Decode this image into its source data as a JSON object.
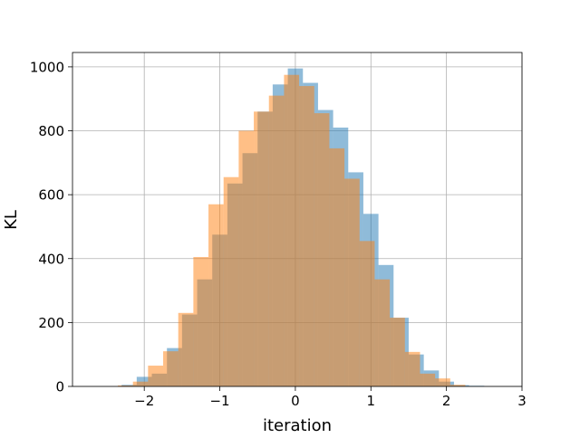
{
  "chart_data": {
    "type": "bar",
    "title": "",
    "xlabel": "iteration",
    "ylabel": "KL",
    "xlim": [
      -2.95,
      3.0
    ],
    "ylim": [
      0,
      1045
    ],
    "grid": true,
    "xticks": [
      -2,
      -1,
      0,
      1,
      2,
      3
    ],
    "xtick_labels": [
      "−2",
      "−1",
      "0",
      "1",
      "2",
      "3"
    ],
    "yticks": [
      0,
      200,
      400,
      600,
      800,
      1000
    ],
    "ytick_labels": [
      "0",
      "200",
      "400",
      "600",
      "800",
      "1000"
    ],
    "series": [
      {
        "color": "#1f77b4",
        "opacity": 0.5,
        "bins": [
          {
            "x0": -2.3,
            "x1": -2.1,
            "value": 5
          },
          {
            "x0": -2.1,
            "x1": -1.9,
            "value": 30
          },
          {
            "x0": -1.9,
            "x1": -1.7,
            "value": 40
          },
          {
            "x0": -1.7,
            "x1": -1.5,
            "value": 120
          },
          {
            "x0": -1.5,
            "x1": -1.3,
            "value": 225
          },
          {
            "x0": -1.3,
            "x1": -1.1,
            "value": 335
          },
          {
            "x0": -1.1,
            "x1": -0.9,
            "value": 475
          },
          {
            "x0": -0.9,
            "x1": -0.7,
            "value": 635
          },
          {
            "x0": -0.7,
            "x1": -0.5,
            "value": 730
          },
          {
            "x0": -0.5,
            "x1": -0.3,
            "value": 860
          },
          {
            "x0": -0.3,
            "x1": -0.1,
            "value": 945
          },
          {
            "x0": -0.1,
            "x1": 0.1,
            "value": 995
          },
          {
            "x0": 0.1,
            "x1": 0.3,
            "value": 950
          },
          {
            "x0": 0.3,
            "x1": 0.5,
            "value": 865
          },
          {
            "x0": 0.5,
            "x1": 0.7,
            "value": 810
          },
          {
            "x0": 0.7,
            "x1": 0.9,
            "value": 670
          },
          {
            "x0": 0.9,
            "x1": 1.1,
            "value": 540
          },
          {
            "x0": 1.1,
            "x1": 1.3,
            "value": 380
          },
          {
            "x0": 1.3,
            "x1": 1.5,
            "value": 215
          },
          {
            "x0": 1.5,
            "x1": 1.7,
            "value": 100
          },
          {
            "x0": 1.7,
            "x1": 1.9,
            "value": 50
          },
          {
            "x0": 1.9,
            "x1": 2.1,
            "value": 15
          },
          {
            "x0": 2.1,
            "x1": 2.3,
            "value": 4
          },
          {
            "x0": 2.3,
            "x1": 2.5,
            "value": 2
          }
        ]
      },
      {
        "color": "#ff7f0e",
        "opacity": 0.5,
        "bins": [
          {
            "x0": -2.35,
            "x1": -2.15,
            "value": 3
          },
          {
            "x0": -2.15,
            "x1": -1.95,
            "value": 15
          },
          {
            "x0": -1.95,
            "x1": -1.75,
            "value": 65
          },
          {
            "x0": -1.75,
            "x1": -1.55,
            "value": 110
          },
          {
            "x0": -1.55,
            "x1": -1.35,
            "value": 230
          },
          {
            "x0": -1.35,
            "x1": -1.15,
            "value": 405
          },
          {
            "x0": -1.15,
            "x1": -0.95,
            "value": 570
          },
          {
            "x0": -0.95,
            "x1": -0.75,
            "value": 655
          },
          {
            "x0": -0.75,
            "x1": -0.55,
            "value": 800
          },
          {
            "x0": -0.55,
            "x1": -0.35,
            "value": 860
          },
          {
            "x0": -0.35,
            "x1": -0.15,
            "value": 910
          },
          {
            "x0": -0.15,
            "x1": 0.05,
            "value": 975
          },
          {
            "x0": 0.05,
            "x1": 0.25,
            "value": 940
          },
          {
            "x0": 0.25,
            "x1": 0.45,
            "value": 855
          },
          {
            "x0": 0.45,
            "x1": 0.65,
            "value": 745
          },
          {
            "x0": 0.65,
            "x1": 0.85,
            "value": 650
          },
          {
            "x0": 0.85,
            "x1": 1.05,
            "value": 455
          },
          {
            "x0": 1.05,
            "x1": 1.25,
            "value": 335
          },
          {
            "x0": 1.25,
            "x1": 1.45,
            "value": 215
          },
          {
            "x0": 1.45,
            "x1": 1.65,
            "value": 108
          },
          {
            "x0": 1.65,
            "x1": 1.85,
            "value": 40
          },
          {
            "x0": 1.85,
            "x1": 2.05,
            "value": 25
          },
          {
            "x0": 2.05,
            "x1": 2.25,
            "value": 5
          }
        ]
      }
    ]
  }
}
